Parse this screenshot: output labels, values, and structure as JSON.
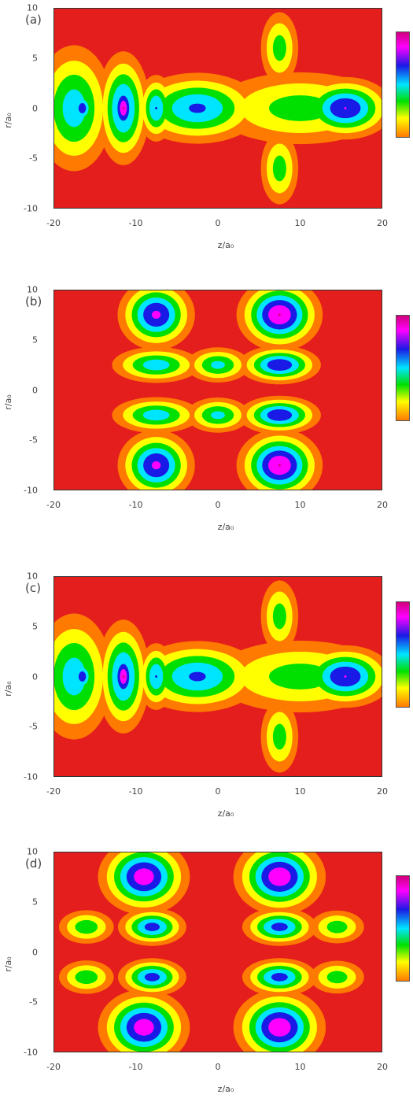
{
  "chart_data": [
    {
      "type": "heatmap",
      "panel_label": "(a)",
      "xlabel": "z/a₀",
      "ylabel": "r/a₀",
      "xlim": [
        -20,
        20
      ],
      "ylim": [
        -10,
        10
      ],
      "x_ticks": [
        "-20",
        "-10",
        "0",
        "10",
        "20"
      ],
      "y_ticks": [
        "10",
        "5",
        "0",
        "-5",
        "-10"
      ],
      "grid": false,
      "colorbar": "right",
      "features": [
        {
          "z": -17.5,
          "r": 0,
          "sz": 2.6,
          "sr": 3.5,
          "peak": 0.6
        },
        {
          "z": -16.5,
          "r": 0,
          "sz": 0.9,
          "sr": 1.0,
          "peak": 0.75
        },
        {
          "z": -11.5,
          "r": 0,
          "sz": 1.7,
          "sr": 3.0,
          "peak": 0.72
        },
        {
          "z": -11.5,
          "r": 0,
          "sz": 0.8,
          "sr": 1.4,
          "peak": 0.92
        },
        {
          "z": -7.5,
          "r": 0,
          "sz": 1.2,
          "sr": 1.8,
          "peak": 0.66
        },
        {
          "z": -2.5,
          "r": 0,
          "sz": 4.2,
          "sr": 1.9,
          "peak": 0.68
        },
        {
          "z": 10.0,
          "r": 0,
          "sz": 6.5,
          "sr": 2.2,
          "peak": 0.45
        },
        {
          "z": 15.5,
          "r": 0,
          "sz": 3.0,
          "sr": 1.6,
          "peak": 0.8
        },
        {
          "z": 7.5,
          "r": 6,
          "sz": 1.4,
          "sr": 2.2,
          "peak": 0.45
        },
        {
          "z": 7.5,
          "r": -6,
          "sz": 1.4,
          "sr": 2.2,
          "peak": 0.45
        }
      ]
    },
    {
      "type": "heatmap",
      "panel_label": "(b)",
      "xlabel": "z/a₀",
      "ylabel": "r/a₀",
      "xlim": [
        -20,
        20
      ],
      "ylim": [
        -10,
        10
      ],
      "x_ticks": [
        "-20",
        "-10",
        "0",
        "10",
        "20"
      ],
      "y_ticks": [
        "10",
        "5",
        "0",
        "-5",
        "-10"
      ],
      "grid": false,
      "colorbar": "right",
      "features": [
        {
          "z": -7.5,
          "r": 7.5,
          "sz": 2.4,
          "sr": 1.8,
          "peak": 0.82
        },
        {
          "z": 7.5,
          "r": 7.5,
          "sz": 2.6,
          "sr": 1.8,
          "peak": 0.92
        },
        {
          "z": -7.5,
          "r": -7.5,
          "sz": 2.4,
          "sr": 1.8,
          "peak": 0.82
        },
        {
          "z": 7.5,
          "r": -7.5,
          "sz": 2.6,
          "sr": 1.8,
          "peak": 0.92
        },
        {
          "z": -7.5,
          "r": 2.5,
          "sz": 3.0,
          "sr": 1.0,
          "peak": 0.6
        },
        {
          "z": 0.0,
          "r": 2.5,
          "sz": 2.2,
          "sr": 1.0,
          "peak": 0.56
        },
        {
          "z": 7.5,
          "r": 2.5,
          "sz": 2.6,
          "sr": 1.0,
          "peak": 0.78
        },
        {
          "z": -7.5,
          "r": -2.5,
          "sz": 3.0,
          "sr": 1.0,
          "peak": 0.6
        },
        {
          "z": 0.0,
          "r": -2.5,
          "sz": 2.2,
          "sr": 1.0,
          "peak": 0.56
        },
        {
          "z": 7.5,
          "r": -2.5,
          "sz": 2.6,
          "sr": 1.0,
          "peak": 0.78
        }
      ]
    },
    {
      "type": "heatmap",
      "panel_label": "(c)",
      "xlabel": "z/a₀",
      "ylabel": "r/a₀",
      "xlim": [
        -20,
        20
      ],
      "ylim": [
        -10,
        10
      ],
      "x_ticks": [
        "-20",
        "-10",
        "0",
        "10",
        "20"
      ],
      "y_ticks": [
        "10",
        "5",
        "0",
        "-5",
        "-10"
      ],
      "grid": false,
      "colorbar": "right",
      "features": [
        {
          "z": -17.5,
          "r": 0,
          "sz": 2.6,
          "sr": 3.5,
          "peak": 0.6
        },
        {
          "z": -16.5,
          "r": 0,
          "sz": 0.9,
          "sr": 1.0,
          "peak": 0.75
        },
        {
          "z": -11.5,
          "r": 0,
          "sz": 1.7,
          "sr": 3.0,
          "peak": 0.72
        },
        {
          "z": -11.5,
          "r": 0,
          "sz": 0.8,
          "sr": 1.4,
          "peak": 0.92
        },
        {
          "z": -7.5,
          "r": 0,
          "sz": 1.2,
          "sr": 1.8,
          "peak": 0.66
        },
        {
          "z": -2.5,
          "r": 0,
          "sz": 4.2,
          "sr": 1.9,
          "peak": 0.68
        },
        {
          "z": 10.0,
          "r": 0,
          "sz": 6.5,
          "sr": 2.2,
          "peak": 0.45
        },
        {
          "z": 15.5,
          "r": 0,
          "sz": 3.0,
          "sr": 1.6,
          "peak": 0.8
        },
        {
          "z": 7.5,
          "r": 6,
          "sz": 1.4,
          "sr": 2.2,
          "peak": 0.45
        },
        {
          "z": 7.5,
          "r": -6,
          "sz": 1.4,
          "sr": 2.2,
          "peak": 0.45
        }
      ]
    },
    {
      "type": "heatmap",
      "panel_label": "(d)",
      "xlabel": "z/a₀",
      "ylabel": "r/a₀",
      "xlim": [
        -20,
        20
      ],
      "ylim": [
        -10,
        10
      ],
      "x_ticks": [
        "-20",
        "-10",
        "0",
        "10",
        "20"
      ],
      "y_ticks": [
        "10",
        "5",
        "0",
        "-5",
        "-10"
      ],
      "grid": false,
      "colorbar": "right",
      "features": [
        {
          "z": -9.0,
          "r": 7.5,
          "sz": 2.8,
          "sr": 1.9,
          "peak": 0.88
        },
        {
          "z": 7.5,
          "r": 7.5,
          "sz": 2.8,
          "sr": 1.9,
          "peak": 0.9
        },
        {
          "z": -9.0,
          "r": -7.5,
          "sz": 2.8,
          "sr": 1.9,
          "peak": 0.88
        },
        {
          "z": 7.5,
          "r": -7.5,
          "sz": 2.8,
          "sr": 1.9,
          "peak": 0.9
        },
        {
          "z": -16.0,
          "r": 2.5,
          "sz": 2.0,
          "sr": 1.0,
          "peak": 0.48
        },
        {
          "z": -8.0,
          "r": 2.5,
          "sz": 2.2,
          "sr": 1.0,
          "peak": 0.72
        },
        {
          "z": 7.5,
          "r": 2.5,
          "sz": 2.4,
          "sr": 1.0,
          "peak": 0.72
        },
        {
          "z": 14.5,
          "r": 2.5,
          "sz": 2.0,
          "sr": 1.0,
          "peak": 0.46
        },
        {
          "z": -16.0,
          "r": -2.5,
          "sz": 2.0,
          "sr": 1.0,
          "peak": 0.48
        },
        {
          "z": -8.0,
          "r": -2.5,
          "sz": 2.2,
          "sr": 1.0,
          "peak": 0.72
        },
        {
          "z": 7.5,
          "r": -2.5,
          "sz": 2.4,
          "sr": 1.0,
          "peak": 0.72
        },
        {
          "z": 14.5,
          "r": -2.5,
          "sz": 2.0,
          "sr": 1.0,
          "peak": 0.46
        }
      ]
    }
  ],
  "colors": {
    "background": "#ffffff",
    "colormap": [
      "#e41d1d",
      "#ff7a00",
      "#ffff00",
      "#00e000",
      "#00e5ff",
      "#1a1ae6",
      "#ff00ff",
      "#d0007a"
    ]
  }
}
